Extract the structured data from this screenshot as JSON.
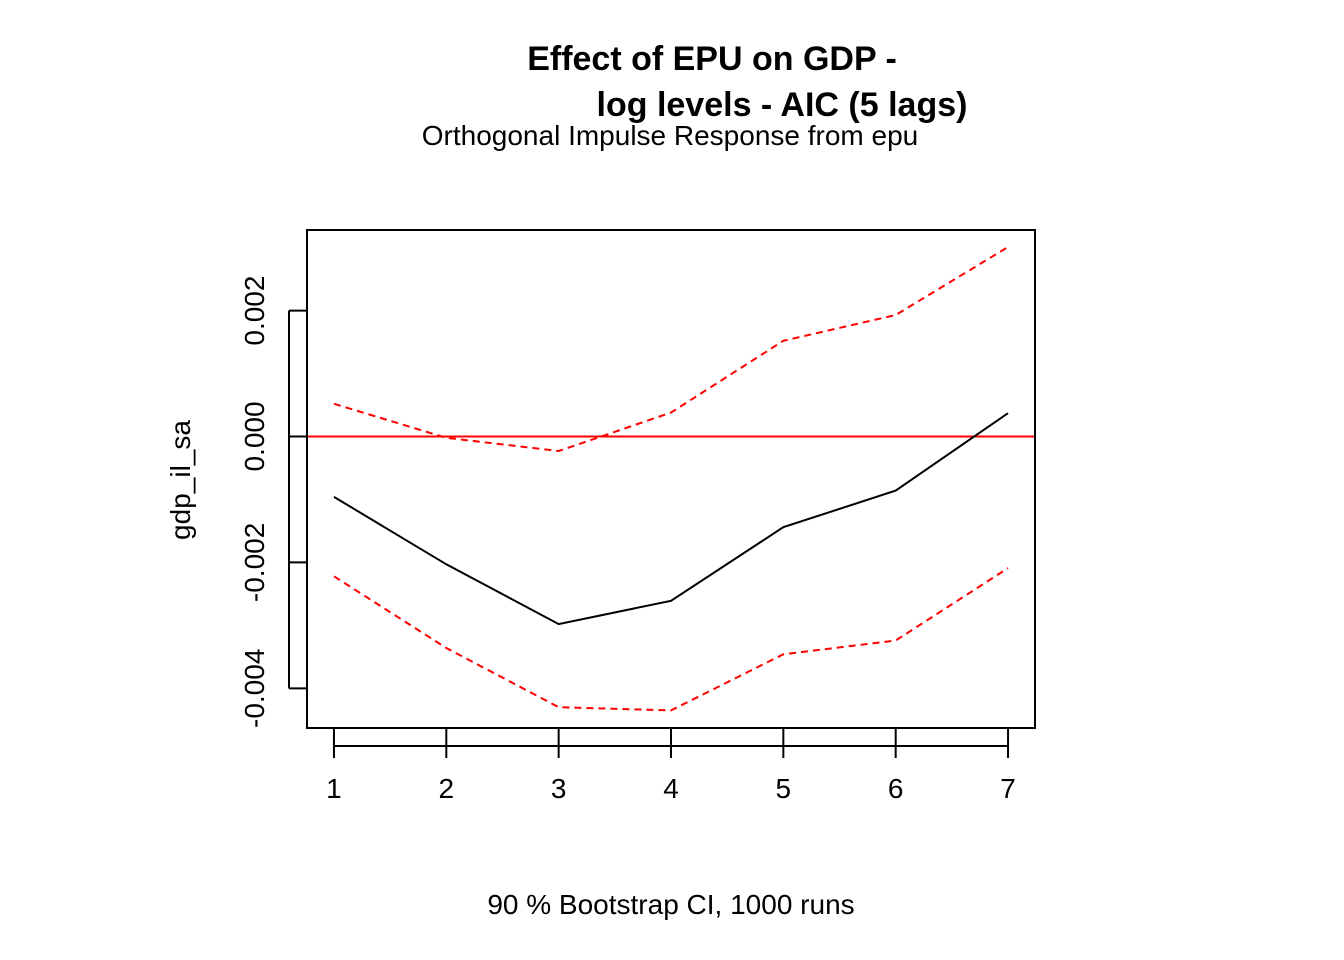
{
  "chart_data": {
    "type": "line",
    "title_line1": "Effect of EPU on GDP -",
    "title_line2": "log levels - AIC (5 lags)",
    "subtitle": "Orthogonal Impulse Response from epu",
    "xlabel": "90 % Bootstrap CI,  1000 runs",
    "ylabel": "gdp_il_sa",
    "x": [
      1,
      2,
      3,
      4,
      5,
      6,
      7
    ],
    "xticks": [
      "1",
      "2",
      "3",
      "4",
      "5",
      "6",
      "7"
    ],
    "yticks": [
      -0.004,
      -0.002,
      0.0,
      0.002
    ],
    "ytick_labels": [
      "-0.004",
      "-0.002",
      "0.000",
      "0.002"
    ],
    "xlim": [
      0.76,
      7.24
    ],
    "ylim": [
      -0.00463,
      0.00328
    ],
    "series": [
      {
        "role": "response",
        "color": "#000000",
        "dash": "solid",
        "values": [
          -0.00096,
          -0.00203,
          -0.00298,
          -0.00261,
          -0.00144,
          -0.00086,
          0.00037
        ]
      },
      {
        "role": "upper-ci",
        "color": "#ff0000",
        "dash": "dashed",
        "values": [
          0.00052,
          -2e-05,
          -0.00023,
          0.00038,
          0.00152,
          0.00193,
          0.00301
        ]
      },
      {
        "role": "lower-ci",
        "color": "#ff0000",
        "dash": "dashed",
        "values": [
          -0.00222,
          -0.00336,
          -0.0043,
          -0.00435,
          -0.00346,
          -0.00324,
          -0.00209
        ]
      }
    ],
    "reference_line": {
      "y": 0,
      "color": "#ff0000"
    },
    "grid": false,
    "legend": "none"
  }
}
